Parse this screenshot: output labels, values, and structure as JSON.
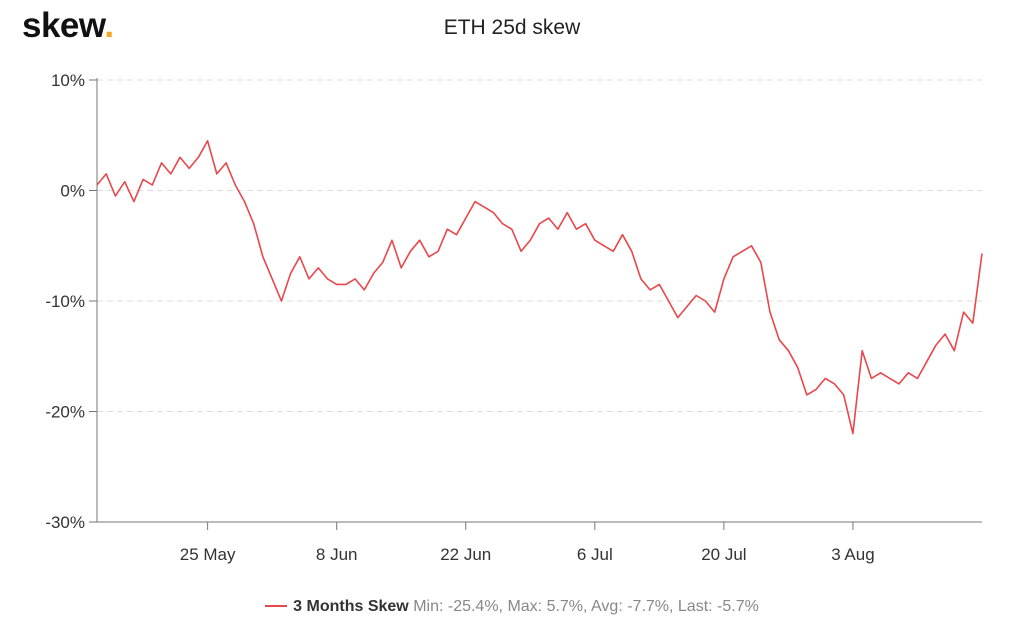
{
  "logo": {
    "text": "skew",
    "dot": ".",
    "dot_color": "#f5a623"
  },
  "chart_data": {
    "type": "line",
    "title": "ETH 25d skew",
    "xlabel": "",
    "ylabel": "",
    "ylim": [
      -30,
      10
    ],
    "y_ticks": [
      10,
      0,
      -10,
      -20,
      -30
    ],
    "y_tick_labels": [
      "10%",
      "0%",
      "-10%",
      "-20%",
      "-30%"
    ],
    "x_range": [
      "2020-05-13",
      "2020-08-17"
    ],
    "x_ticks": [
      "2020-05-25",
      "2020-06-08",
      "2020-06-22",
      "2020-07-06",
      "2020-07-20",
      "2020-08-03"
    ],
    "x_tick_labels": [
      "25 May",
      "8 Jun",
      "22 Jun",
      "6 Jul",
      "20 Jul",
      "3 Aug"
    ],
    "grid": "horizontal dashed",
    "legend_position": "bottom-center",
    "series": [
      {
        "name": "3 Months Skew",
        "color": "#e8474b",
        "x": [
          "2020-05-13",
          "2020-05-14",
          "2020-05-15",
          "2020-05-16",
          "2020-05-17",
          "2020-05-18",
          "2020-05-19",
          "2020-05-20",
          "2020-05-21",
          "2020-05-22",
          "2020-05-23",
          "2020-05-24",
          "2020-05-25",
          "2020-05-26",
          "2020-05-27",
          "2020-05-28",
          "2020-05-29",
          "2020-05-30",
          "2020-05-31",
          "2020-06-01",
          "2020-06-02",
          "2020-06-03",
          "2020-06-04",
          "2020-06-05",
          "2020-06-06",
          "2020-06-07",
          "2020-06-08",
          "2020-06-09",
          "2020-06-10",
          "2020-06-11",
          "2020-06-12",
          "2020-06-13",
          "2020-06-14",
          "2020-06-15",
          "2020-06-16",
          "2020-06-17",
          "2020-06-18",
          "2020-06-19",
          "2020-06-20",
          "2020-06-21",
          "2020-06-22",
          "2020-06-23",
          "2020-06-24",
          "2020-06-25",
          "2020-06-26",
          "2020-06-27",
          "2020-06-28",
          "2020-06-29",
          "2020-06-30",
          "2020-07-01",
          "2020-07-02",
          "2020-07-03",
          "2020-07-04",
          "2020-07-05",
          "2020-07-06",
          "2020-07-07",
          "2020-07-08",
          "2020-07-09",
          "2020-07-10",
          "2020-07-11",
          "2020-07-12",
          "2020-07-13",
          "2020-07-14",
          "2020-07-15",
          "2020-07-16",
          "2020-07-17",
          "2020-07-18",
          "2020-07-19",
          "2020-07-20",
          "2020-07-21",
          "2020-07-22",
          "2020-07-23",
          "2020-07-24",
          "2020-07-25",
          "2020-07-26",
          "2020-07-27",
          "2020-07-28",
          "2020-07-29",
          "2020-07-30",
          "2020-07-31",
          "2020-08-01",
          "2020-08-02",
          "2020-08-03",
          "2020-08-04",
          "2020-08-05",
          "2020-08-06",
          "2020-08-07",
          "2020-08-08",
          "2020-08-09",
          "2020-08-10",
          "2020-08-11",
          "2020-08-12",
          "2020-08-13",
          "2020-08-14",
          "2020-08-15",
          "2020-08-16",
          "2020-08-17"
        ],
        "values": [
          0.5,
          1.5,
          -0.5,
          0.8,
          -1.0,
          1.0,
          0.5,
          2.5,
          1.5,
          3.0,
          2.0,
          3.0,
          4.5,
          1.5,
          2.5,
          0.5,
          -1.0,
          -3.0,
          -6.0,
          -8.0,
          -10.0,
          -7.5,
          -6.0,
          -8.0,
          -7.0,
          -8.0,
          -8.5,
          -8.5,
          -8.0,
          -9.0,
          -7.5,
          -6.5,
          -4.5,
          -7.0,
          -5.5,
          -4.5,
          -6.0,
          -5.5,
          -3.5,
          -4.0,
          -2.5,
          -1.0,
          -1.5,
          -2.0,
          -3.0,
          -3.5,
          -5.5,
          -4.5,
          -3.0,
          -2.5,
          -3.5,
          -2.0,
          -3.5,
          -3.0,
          -4.5,
          -5.0,
          -5.5,
          -4.0,
          -5.5,
          -8.0,
          -9.0,
          -8.5,
          -10.0,
          -11.5,
          -10.5,
          -9.5,
          -10.0,
          -11.0,
          -8.0,
          -6.0,
          -5.5,
          -5.0,
          -6.5,
          -11.0,
          -13.5,
          -14.5,
          -16.0,
          -18.5,
          -18.0,
          -17.0,
          -17.5,
          -18.5,
          -22.0,
          -14.5,
          -17.0,
          -16.5,
          -17.0,
          -17.5,
          -16.5,
          -17.0,
          -15.5,
          -14.0,
          -13.0,
          -14.5,
          -11.0,
          -12.0,
          -5.7
        ],
        "min": -25.4,
        "max": 5.7,
        "avg": -7.7,
        "last": -5.7
      }
    ]
  },
  "legend": {
    "series_name": "3 Months Skew",
    "stats_text": "Min: -25.4%, Max: 5.7%, Avg: -7.7%, Last: -5.7%"
  }
}
